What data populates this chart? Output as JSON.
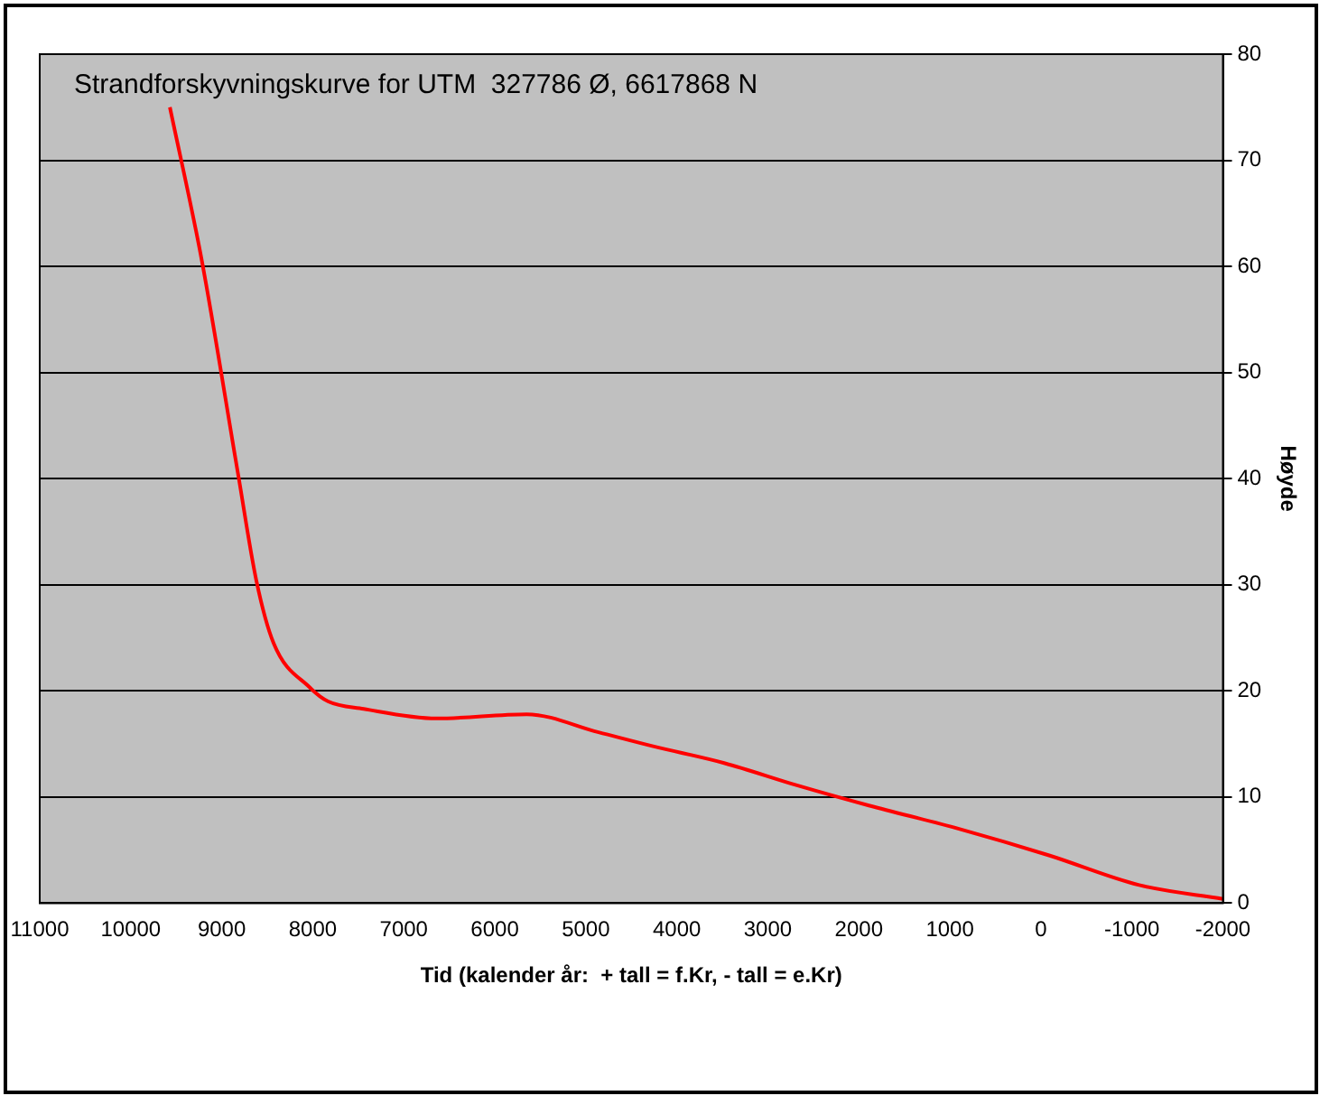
{
  "chart_data": {
    "type": "line",
    "title": "Strandforskyvningskurve for UTM  327786 Ø, 6617868 N",
    "xlabel": "Tid (kalender år:  + tall = f.Kr, - tall = e.Kr)",
    "ylabel": "Høyde",
    "xlim": [
      11000,
      -2000
    ],
    "xticks": [
      11000,
      10000,
      9000,
      8000,
      7000,
      6000,
      5000,
      4000,
      3000,
      2000,
      1000,
      0,
      -1000,
      -2000
    ],
    "ylim": [
      0,
      80
    ],
    "yticks": [
      0,
      10,
      20,
      30,
      40,
      50,
      60,
      70,
      80
    ],
    "grid": "y",
    "legend": false,
    "marker": "none",
    "line_style": "solid",
    "series": [
      {
        "color": "#ff0000",
        "x": [
          9570,
          9220,
          8820,
          8620,
          8430,
          8030,
          7830,
          7440,
          6640,
          5650,
          4860,
          4270,
          3480,
          2680,
          1890,
          900,
          -90,
          -1080,
          -2000
        ],
        "values": [
          75,
          60.6,
          40.4,
          30.4,
          24.5,
          20.3,
          19,
          18.3,
          17.4,
          17.8,
          16.1,
          14.8,
          13.2,
          11.1,
          9.2,
          7,
          4.5,
          1.7,
          0.4
        ]
      }
    ]
  }
}
